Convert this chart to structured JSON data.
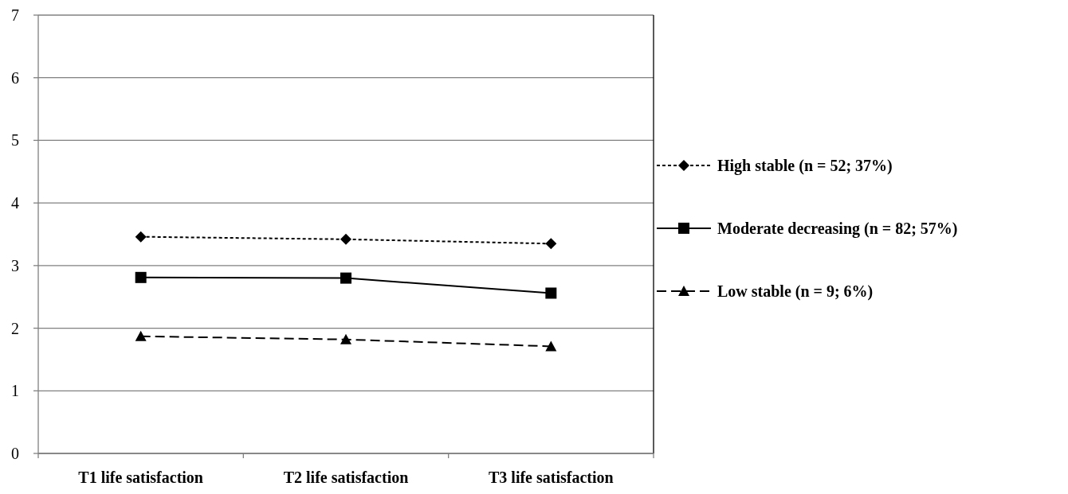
{
  "chart_data": {
    "type": "line",
    "categories": [
      "T1 life satisfaction",
      "T2 life satisfaction",
      "T3 life satisfaction"
    ],
    "series": [
      {
        "name": "High stable (n = 52; 37%)",
        "color": "#000000",
        "values": [
          3.46,
          3.42,
          3.35
        ],
        "marker": "diamond",
        "line_style": "dotted"
      },
      {
        "name": "Moderate decreasing (n = 82; 57%)",
        "color": "#000000",
        "values": [
          2.81,
          2.8,
          2.56
        ],
        "marker": "square",
        "line_style": "solid"
      },
      {
        "name": "Low stable (n = 9; 6%)",
        "color": "#000000",
        "values": [
          1.87,
          1.82,
          1.71
        ],
        "marker": "triangle",
        "line_style": "dashed"
      }
    ],
    "ylim": [
      0,
      7
    ],
    "yticks": [
      0,
      1,
      2,
      3,
      4,
      5,
      6,
      7
    ],
    "grid": "y",
    "legend": "right"
  }
}
